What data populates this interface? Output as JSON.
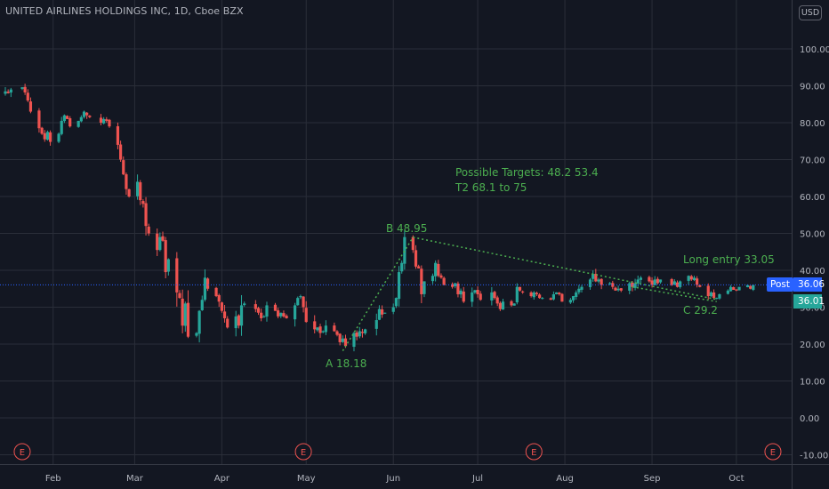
{
  "header": {
    "symbol_title": "UNITED AIRLINES HOLDINGS INC, 1D, Cboe BZX",
    "currency": "USD"
  },
  "price_tags": {
    "post_label": "Post",
    "post_price": "36.06",
    "last_price": "36.01"
  },
  "colors": {
    "background": "#131722",
    "grid": "#2a2e39",
    "up": "#26a69a",
    "down": "#ef5350",
    "annotation": "#4caf50",
    "post_tag": "#2962ff",
    "last_tag": "#26a69a",
    "earnings_marker": "#ef5350"
  },
  "annotations": {
    "target_line_1": "Possible Targets:  48.2  53.4",
    "target_line_2": "T2   68.1 to 75",
    "label_a": "A 18.18",
    "label_b": "B 48.95",
    "label_c": "C 29.2",
    "long_entry": "Long entry  33.05"
  },
  "chart_data": {
    "type": "candlestick",
    "title": "UNITED AIRLINES HOLDINGS INC, 1D, Cboe BZX",
    "ylabel": "USD",
    "ylim": [
      -12,
      108
    ],
    "y_ticks": [
      "100.00",
      "90.00",
      "80.00",
      "70.00",
      "60.00",
      "50.00",
      "40.00",
      "30.00",
      "20.00",
      "10.00",
      "0.00",
      "-10.00"
    ],
    "x_tick_labels": [
      "Feb",
      "Mar",
      "Apr",
      "May",
      "Jun",
      "Jul",
      "Aug",
      "Sep",
      "Oct"
    ],
    "x_range": [
      "2020-01-15",
      "2020-10-08"
    ],
    "grid": true,
    "earnings_markers": [
      {
        "date": "2020-01-21",
        "label": "E"
      },
      {
        "date": "2020-04-30",
        "label": "E"
      },
      {
        "date": "2020-07-21",
        "label": "E"
      },
      {
        "date": "2020-10-14",
        "label": "E"
      }
    ],
    "pattern_points": [
      {
        "label": "A 18.18",
        "date": "2020-05-14",
        "price": 18.18
      },
      {
        "label": "B 48.95",
        "date": "2020-06-08",
        "price": 48.95
      },
      {
        "label": "C 29.2",
        "date": "2020-09-24",
        "price": 29.2
      }
    ],
    "support_line": [
      {
        "date": "2020-08-25",
        "price": 35.5
      },
      {
        "date": "2020-09-24",
        "price": 31.5
      }
    ],
    "last_price": 36.01,
    "post_price": 36.06,
    "closes": [
      [
        "2020-01-15",
        88.5
      ],
      [
        "2020-01-16",
        88.0
      ],
      [
        "2020-01-17",
        89.0
      ],
      [
        "2020-01-21",
        89.6
      ],
      [
        "2020-01-22",
        88.2
      ],
      [
        "2020-01-23",
        86.0
      ],
      [
        "2020-01-24",
        83.0
      ],
      [
        "2020-01-27",
        78.5
      ],
      [
        "2020-01-28",
        77.0
      ],
      [
        "2020-01-29",
        75.5
      ],
      [
        "2020-01-30",
        77.5
      ],
      [
        "2020-01-31",
        74.8
      ],
      [
        "2020-02-03",
        77.0
      ],
      [
        "2020-02-04",
        80.5
      ],
      [
        "2020-02-05",
        82.0
      ],
      [
        "2020-02-06",
        81.0
      ],
      [
        "2020-02-07",
        79.0
      ],
      [
        "2020-02-10",
        80.5
      ],
      [
        "2020-02-11",
        81.5
      ],
      [
        "2020-02-12",
        83.0
      ],
      [
        "2020-02-13",
        82.0
      ],
      [
        "2020-02-14",
        81.5
      ],
      [
        "2020-02-18",
        80.0
      ],
      [
        "2020-02-19",
        81.0
      ],
      [
        "2020-02-20",
        80.5
      ],
      [
        "2020-02-21",
        79.0
      ],
      [
        "2020-02-24",
        74.0
      ],
      [
        "2020-02-25",
        70.0
      ],
      [
        "2020-02-26",
        66.0
      ],
      [
        "2020-02-27",
        62.0
      ],
      [
        "2020-02-28",
        60.0
      ],
      [
        "2020-03-02",
        64.0
      ],
      [
        "2020-03-03",
        59.0
      ],
      [
        "2020-03-04",
        58.0
      ],
      [
        "2020-03-05",
        52.0
      ],
      [
        "2020-03-06",
        50.0
      ],
      [
        "2020-03-09",
        45.5
      ],
      [
        "2020-03-10",
        49.0
      ],
      [
        "2020-03-11",
        48.0
      ],
      [
        "2020-03-12",
        39.5
      ],
      [
        "2020-03-13",
        43.0
      ],
      [
        "2020-03-16",
        34.0
      ],
      [
        "2020-03-17",
        32.5
      ],
      [
        "2020-03-18",
        25.0
      ],
      [
        "2020-03-19",
        31.0
      ],
      [
        "2020-03-20",
        22.0
      ],
      [
        "2020-03-23",
        23.0
      ],
      [
        "2020-03-24",
        29.0
      ],
      [
        "2020-03-25",
        32.0
      ],
      [
        "2020-03-26",
        38.0
      ],
      [
        "2020-03-27",
        35.0
      ],
      [
        "2020-03-30",
        33.0
      ],
      [
        "2020-03-31",
        31.5
      ],
      [
        "2020-04-01",
        29.0
      ],
      [
        "2020-04-02",
        27.0
      ],
      [
        "2020-04-03",
        24.5
      ],
      [
        "2020-04-06",
        27.5
      ],
      [
        "2020-04-07",
        25.0
      ],
      [
        "2020-04-08",
        30.5
      ],
      [
        "2020-04-09",
        31.0
      ],
      [
        "2020-04-13",
        29.5
      ],
      [
        "2020-04-14",
        28.5
      ],
      [
        "2020-04-15",
        27.0
      ],
      [
        "2020-04-16",
        27.5
      ],
      [
        "2020-04-17",
        30.5
      ],
      [
        "2020-04-20",
        29.0
      ],
      [
        "2020-04-21",
        27.5
      ],
      [
        "2020-04-22",
        28.5
      ],
      [
        "2020-04-23",
        27.5
      ],
      [
        "2020-04-24",
        27.0
      ],
      [
        "2020-04-27",
        30.5
      ],
      [
        "2020-04-28",
        32.5
      ],
      [
        "2020-04-29",
        33.0
      ],
      [
        "2020-04-30",
        30.0
      ],
      [
        "2020-05-01",
        26.0
      ],
      [
        "2020-05-04",
        24.0
      ],
      [
        "2020-05-05",
        24.5
      ],
      [
        "2020-05-06",
        23.0
      ],
      [
        "2020-05-07",
        23.5
      ],
      [
        "2020-05-08",
        25.0
      ],
      [
        "2020-05-11",
        23.5
      ],
      [
        "2020-05-12",
        22.5
      ],
      [
        "2020-05-13",
        20.5
      ],
      [
        "2020-05-14",
        21.5
      ],
      [
        "2020-05-15",
        19.5
      ],
      [
        "2020-05-18",
        23.0
      ],
      [
        "2020-05-19",
        22.0
      ],
      [
        "2020-05-20",
        23.5
      ],
      [
        "2020-05-21",
        23.0
      ],
      [
        "2020-05-22",
        24.0
      ],
      [
        "2020-05-26",
        26.5
      ],
      [
        "2020-05-27",
        29.5
      ],
      [
        "2020-05-28",
        28.0
      ],
      [
        "2020-05-29",
        28.5
      ],
      [
        "2020-06-01",
        30.0
      ],
      [
        "2020-06-02",
        32.5
      ],
      [
        "2020-06-03",
        39.5
      ],
      [
        "2020-06-04",
        42.0
      ],
      [
        "2020-06-05",
        49.0
      ],
      [
        "2020-06-08",
        45.5
      ],
      [
        "2020-06-09",
        41.0
      ],
      [
        "2020-06-10",
        40.5
      ],
      [
        "2020-06-11",
        33.5
      ],
      [
        "2020-06-12",
        37.0
      ],
      [
        "2020-06-15",
        38.5
      ],
      [
        "2020-06-16",
        42.0
      ],
      [
        "2020-06-17",
        38.5
      ],
      [
        "2020-06-18",
        38.0
      ],
      [
        "2020-06-19",
        36.0
      ],
      [
        "2020-06-22",
        35.5
      ],
      [
        "2020-06-23",
        36.5
      ],
      [
        "2020-06-24",
        33.5
      ],
      [
        "2020-06-25",
        34.5
      ],
      [
        "2020-06-26",
        31.5
      ],
      [
        "2020-06-29",
        34.0
      ],
      [
        "2020-06-30",
        34.6
      ],
      [
        "2020-07-01",
        33.5
      ],
      [
        "2020-07-02",
        32.0
      ],
      [
        "2020-07-06",
        34.0
      ],
      [
        "2020-07-07",
        32.5
      ],
      [
        "2020-07-08",
        31.0
      ],
      [
        "2020-07-09",
        29.5
      ],
      [
        "2020-07-10",
        31.5
      ],
      [
        "2020-07-13",
        30.5
      ],
      [
        "2020-07-14",
        31.0
      ],
      [
        "2020-07-15",
        35.5
      ],
      [
        "2020-07-16",
        34.5
      ],
      [
        "2020-07-17",
        34.0
      ],
      [
        "2020-07-20",
        33.0
      ],
      [
        "2020-07-21",
        34.0
      ],
      [
        "2020-07-22",
        33.5
      ],
      [
        "2020-07-23",
        32.5
      ],
      [
        "2020-07-24",
        32.5
      ],
      [
        "2020-07-27",
        32.0
      ],
      [
        "2020-07-28",
        33.5
      ],
      [
        "2020-07-29",
        34.0
      ],
      [
        "2020-07-30",
        33.5
      ],
      [
        "2020-07-31",
        31.5
      ],
      [
        "2020-08-03",
        32.0
      ],
      [
        "2020-08-04",
        33.0
      ],
      [
        "2020-08-05",
        34.0
      ],
      [
        "2020-08-06",
        35.0
      ],
      [
        "2020-08-07",
        35.5
      ],
      [
        "2020-08-10",
        37.5
      ],
      [
        "2020-08-11",
        39.0
      ],
      [
        "2020-08-12",
        37.0
      ],
      [
        "2020-08-13",
        37.5
      ],
      [
        "2020-08-14",
        36.0
      ],
      [
        "2020-08-17",
        36.5
      ],
      [
        "2020-08-18",
        35.5
      ],
      [
        "2020-08-19",
        34.5
      ],
      [
        "2020-08-20",
        35.0
      ],
      [
        "2020-08-21",
        34.5
      ],
      [
        "2020-08-24",
        36.5
      ],
      [
        "2020-08-25",
        35.5
      ],
      [
        "2020-08-26",
        36.5
      ],
      [
        "2020-08-27",
        37.5
      ],
      [
        "2020-08-28",
        38.0
      ],
      [
        "2020-08-31",
        37.0
      ],
      [
        "2020-09-01",
        36.0
      ],
      [
        "2020-09-02",
        37.5
      ],
      [
        "2020-09-03",
        36.5
      ],
      [
        "2020-09-04",
        37.5
      ],
      [
        "2020-09-08",
        36.0
      ],
      [
        "2020-09-09",
        37.0
      ],
      [
        "2020-09-10",
        35.5
      ],
      [
        "2020-09-11",
        37.0
      ],
      [
        "2020-09-14",
        38.5
      ],
      [
        "2020-09-15",
        37.5
      ],
      [
        "2020-09-16",
        38.0
      ],
      [
        "2020-09-17",
        36.0
      ],
      [
        "2020-09-18",
        35.5
      ],
      [
        "2020-09-21",
        33.0
      ],
      [
        "2020-09-22",
        34.0
      ],
      [
        "2020-09-23",
        32.5
      ],
      [
        "2020-09-24",
        32.5
      ],
      [
        "2020-09-25",
        33.5
      ],
      [
        "2020-09-28",
        34.5
      ],
      [
        "2020-09-29",
        35.5
      ],
      [
        "2020-09-30",
        34.7
      ],
      [
        "2020-10-01",
        34.5
      ],
      [
        "2020-10-02",
        35.5
      ],
      [
        "2020-10-05",
        36.0
      ],
      [
        "2020-10-06",
        35.0
      ],
      [
        "2020-10-07",
        36.01
      ]
    ]
  }
}
